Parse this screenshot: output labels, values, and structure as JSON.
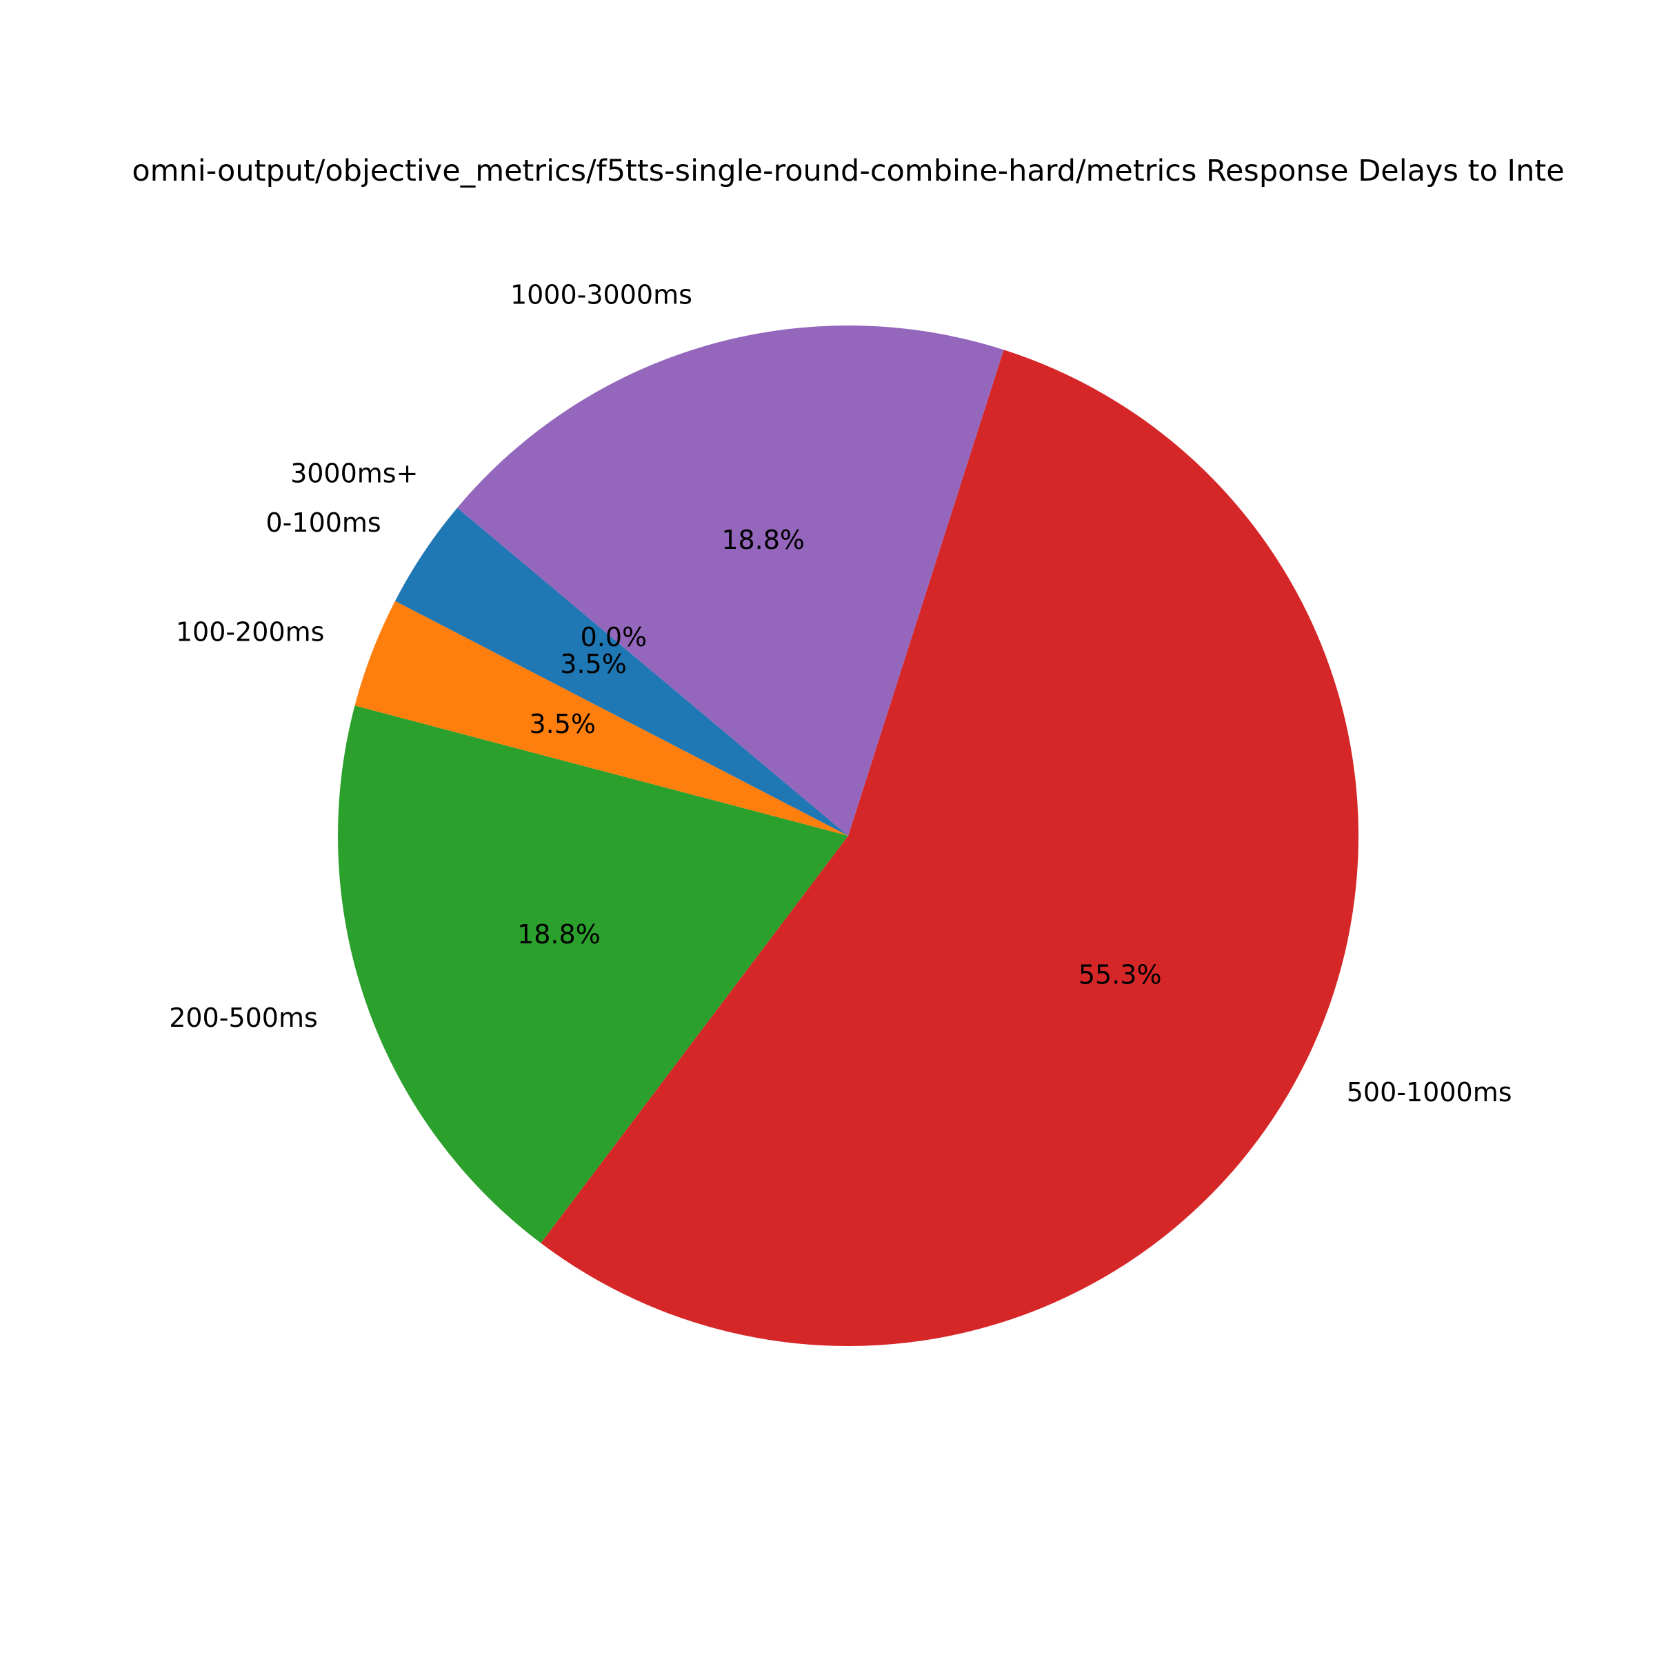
{
  "chart_data": {
    "type": "pie",
    "title": "omni-output/objective_metrics/f5tts-single-round-combine-hard/metrics Response Delays to Inte",
    "categories": [
      "0-100ms",
      "100-200ms",
      "200-500ms",
      "500-1000ms",
      "1000-3000ms",
      "3000ms+"
    ],
    "values": [
      3.5,
      3.5,
      18.8,
      55.3,
      18.8,
      0.0
    ],
    "percent_labels": [
      "3.5%",
      "3.5%",
      "18.8%",
      "55.3%",
      "18.8%",
      "0.0%"
    ],
    "colors": [
      "#1f77b4",
      "#ff7f0e",
      "#2ca02c",
      "#d62728",
      "#9467bd",
      "#8c564b"
    ],
    "start_angle_deg": 140,
    "direction": "counterclockwise"
  }
}
